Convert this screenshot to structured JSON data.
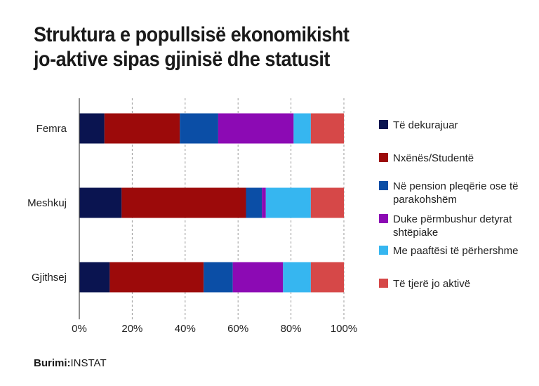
{
  "title_lines": [
    "Struktura e popullsisë ekonomikisht",
    "jo-aktive sipas gjinisë dhe statusit"
  ],
  "source": {
    "label": "Burimi:",
    "value": "INSTAT"
  },
  "chart_data": {
    "type": "bar",
    "orientation": "horizontal",
    "stacked": true,
    "percent": true,
    "categories": [
      "Femra",
      "Meshkuj",
      "Gjithsej"
    ],
    "xlim": [
      0,
      100
    ],
    "x_ticks": [
      "0%",
      "20%",
      "40%",
      "60%",
      "80%",
      "100%"
    ],
    "grid": "vertical dashed",
    "legend_position": "right",
    "series": [
      {
        "name": "Të dekurajuar",
        "color": "#0a1450",
        "values": [
          9.5,
          16,
          11.5
        ]
      },
      {
        "name": "Nxënës/Studentë",
        "color": "#9c0a0a",
        "values": [
          28.5,
          47,
          35.5
        ]
      },
      {
        "name": "Në pension pleqërie ose të parakohshëm",
        "color": "#0b4ea6",
        "values": [
          14.5,
          6,
          11
        ]
      },
      {
        "name": "Duke përmbushur detyrat shtëpiake",
        "color": "#8c0ab4",
        "values": [
          28.5,
          1.5,
          19
        ]
      },
      {
        "name": "Me paaftësi të përhershme",
        "color": "#36b6f0",
        "values": [
          6.5,
          17,
          10.5
        ]
      },
      {
        "name": "Të tjerë jo aktivë",
        "color": "#d64848",
        "values": [
          12.5,
          12.5,
          12.5
        ]
      }
    ]
  }
}
